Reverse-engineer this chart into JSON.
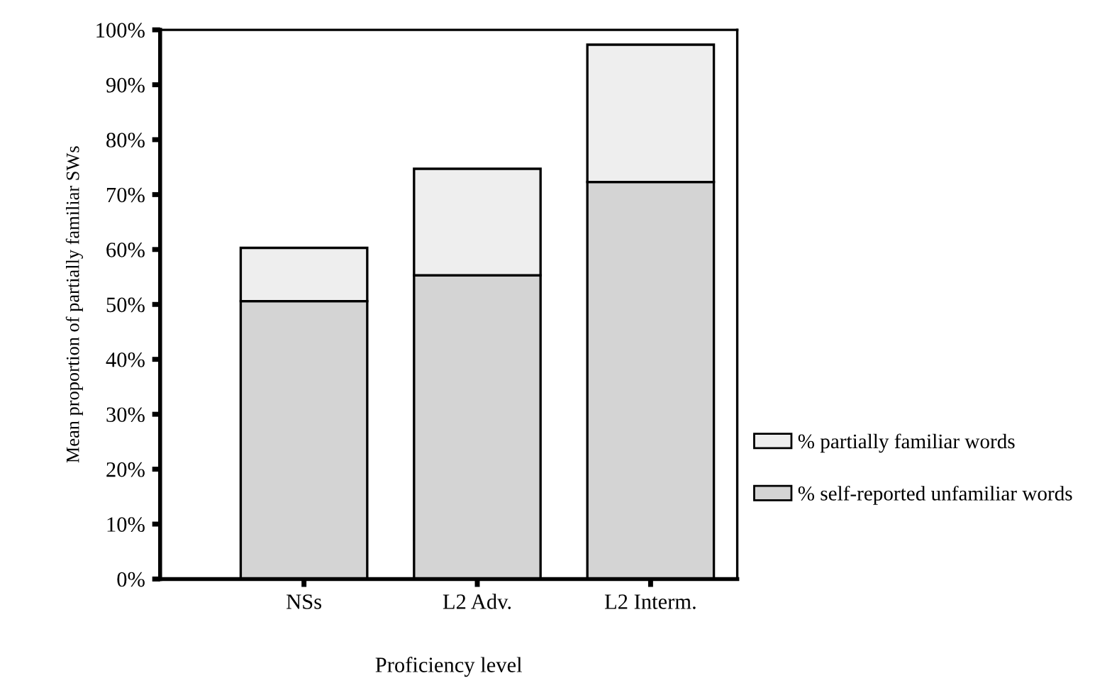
{
  "chart_data": {
    "type": "bar",
    "stacked": true,
    "xlabel": "Proficiency level",
    "ylabel": "Mean proportion of partially familiar SWs",
    "categories": [
      "NSs",
      "L2 Adv.",
      "L2 Interm."
    ],
    "series": [
      {
        "name": "% self-reported unfamiliar words",
        "color": "#d4d4d4",
        "values": [
          50.6,
          55.3,
          72.3
        ]
      },
      {
        "name": "% partially familiar words",
        "color": "#eeeeee",
        "values": [
          9.7,
          19.4,
          25.0
        ]
      }
    ],
    "ylim": [
      0,
      100
    ],
    "yticks": [
      {
        "value": 0,
        "label": "0%"
      },
      {
        "value": 10,
        "label": "10%"
      },
      {
        "value": 20,
        "label": "20%"
      },
      {
        "value": 30,
        "label": "30%"
      },
      {
        "value": 40,
        "label": "40%"
      },
      {
        "value": 50,
        "label": "50%"
      },
      {
        "value": 60,
        "label": "60%"
      },
      {
        "value": 70,
        "label": "70%"
      },
      {
        "value": 80,
        "label": "80%"
      },
      {
        "value": 90,
        "label": "90%"
      },
      {
        "value": 100,
        "label": "100%"
      }
    ],
    "grid": false,
    "legend": "right"
  }
}
